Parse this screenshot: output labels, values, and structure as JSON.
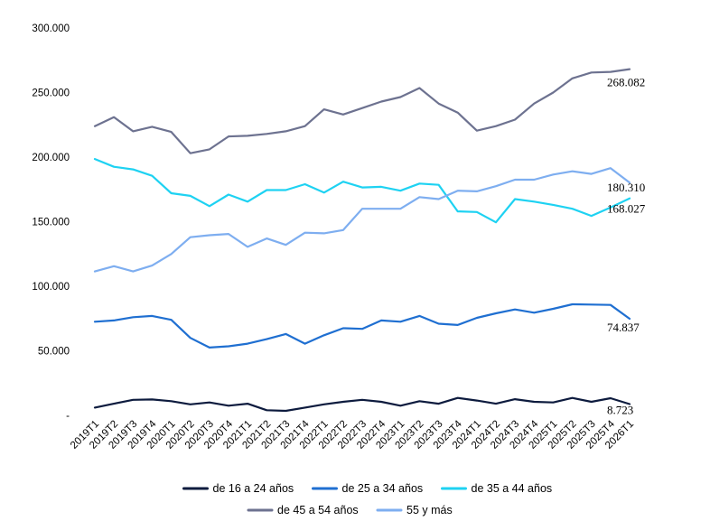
{
  "chart_data": {
    "type": "line",
    "title": "",
    "xlabel": "",
    "ylabel": "",
    "ylim": [
      0,
      300000
    ],
    "yticks": [
      {
        "value": 0,
        "label": "-"
      },
      {
        "value": 50000,
        "label": "50.000"
      },
      {
        "value": 100000,
        "label": "100.000"
      },
      {
        "value": 150000,
        "label": "150.000"
      },
      {
        "value": 200000,
        "label": "200.000"
      },
      {
        "value": 250000,
        "label": "250.000"
      },
      {
        "value": 300000,
        "label": "300.000"
      }
    ],
    "grid": false,
    "legend_position": "bottom",
    "categories": [
      "2019T1",
      "2019T2",
      "2019T3",
      "2019T4",
      "2020T1",
      "2020T2",
      "2020T3",
      "2020T4",
      "2021T1",
      "2021T2",
      "2021T3",
      "2021T4",
      "2022T1",
      "2022T2",
      "2022T3",
      "2022T4",
      "2023T1",
      "2023T2",
      "2023T3",
      "2023T4",
      "2024T1",
      "2024T2",
      "2024T3",
      "2024T4",
      "2025T1",
      "2025T2",
      "2025T3",
      "2025T4",
      "2026T1"
    ],
    "series": [
      {
        "name": "de 16 a 24 años",
        "color": "#0d1b3e",
        "values": [
          6000,
          9000,
          12000,
          12300,
          11000,
          8500,
          10000,
          7500,
          9000,
          4000,
          3500,
          6000,
          8500,
          10500,
          12000,
          10500,
          7500,
          11000,
          9000,
          13500,
          11500,
          9000,
          12500,
          10500,
          10000,
          13500,
          10500,
          13300,
          8723
        ],
        "end_label": "8.723"
      },
      {
        "name": "de 25 a 34 años",
        "color": "#1f6fd1",
        "values": [
          72500,
          73500,
          76000,
          77000,
          74000,
          60000,
          52500,
          53500,
          55500,
          59000,
          63000,
          55500,
          62000,
          67500,
          67000,
          73500,
          72500,
          77000,
          71000,
          70000,
          75500,
          79000,
          82000,
          79500,
          82500,
          86000,
          85800,
          85500,
          74837
        ],
        "end_label": "74.837"
      },
      {
        "name": "de 35 a 44 años",
        "color": "#1ed2f2",
        "values": [
          198500,
          192500,
          190500,
          185500,
          172000,
          170000,
          162000,
          171000,
          165500,
          174500,
          174500,
          179000,
          172500,
          181000,
          176500,
          177000,
          174000,
          179500,
          178500,
          158000,
          157500,
          149500,
          167500,
          165500,
          163000,
          160000,
          154500,
          161000,
          168027
        ],
        "end_label": "168.027"
      },
      {
        "name": "de 45 a 54 años",
        "color": "#6d7290",
        "values": [
          224000,
          231000,
          220000,
          223500,
          219500,
          203000,
          206000,
          216000,
          216500,
          218000,
          220000,
          224000,
          237000,
          233000,
          238000,
          243000,
          246500,
          253500,
          241500,
          234500,
          220500,
          224000,
          229000,
          241500,
          250000,
          261000,
          265500,
          266000,
          268082
        ],
        "end_label": "268.082"
      },
      {
        "name": "55 y más",
        "color": "#7eaef0",
        "values": [
          111500,
          115500,
          111500,
          116000,
          125000,
          138000,
          139500,
          140500,
          130500,
          137000,
          132000,
          141500,
          141000,
          143500,
          160000,
          160000,
          160000,
          169000,
          167500,
          174000,
          173500,
          177500,
          182500,
          182500,
          186500,
          189000,
          187000,
          191500,
          180310
        ],
        "end_label": "180.310"
      }
    ]
  }
}
